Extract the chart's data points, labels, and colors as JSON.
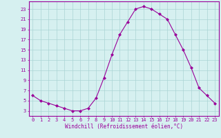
{
  "x": [
    0,
    1,
    2,
    3,
    4,
    5,
    6,
    7,
    8,
    9,
    10,
    11,
    12,
    13,
    14,
    15,
    16,
    17,
    18,
    19,
    20,
    21,
    22,
    23
  ],
  "y": [
    6,
    5,
    4.5,
    4,
    3.5,
    3,
    3,
    3.5,
    5.5,
    9.5,
    14,
    18,
    20.5,
    23,
    23.5,
    23,
    22,
    21,
    18,
    15,
    11.5,
    7.5,
    6,
    4.5
  ],
  "line_color": "#990099",
  "marker": "D",
  "marker_size": 2.0,
  "bg_color": "#d6f0f0",
  "grid_color": "#aad4d4",
  "xlabel": "Windchill (Refroidissement éolien,°C)",
  "xlabel_color": "#990099",
  "xlabel_fontsize": 5.5,
  "yticks": [
    3,
    5,
    7,
    9,
    11,
    13,
    15,
    17,
    19,
    21,
    23
  ],
  "xticks": [
    0,
    1,
    2,
    3,
    4,
    5,
    6,
    7,
    8,
    9,
    10,
    11,
    12,
    13,
    14,
    15,
    16,
    17,
    18,
    19,
    20,
    21,
    22,
    23
  ],
  "ylim": [
    2.0,
    24.5
  ],
  "xlim": [
    -0.5,
    23.5
  ],
  "tick_color": "#990099",
  "tick_fontsize": 5.0,
  "spine_color": "#990099",
  "linewidth": 0.8
}
